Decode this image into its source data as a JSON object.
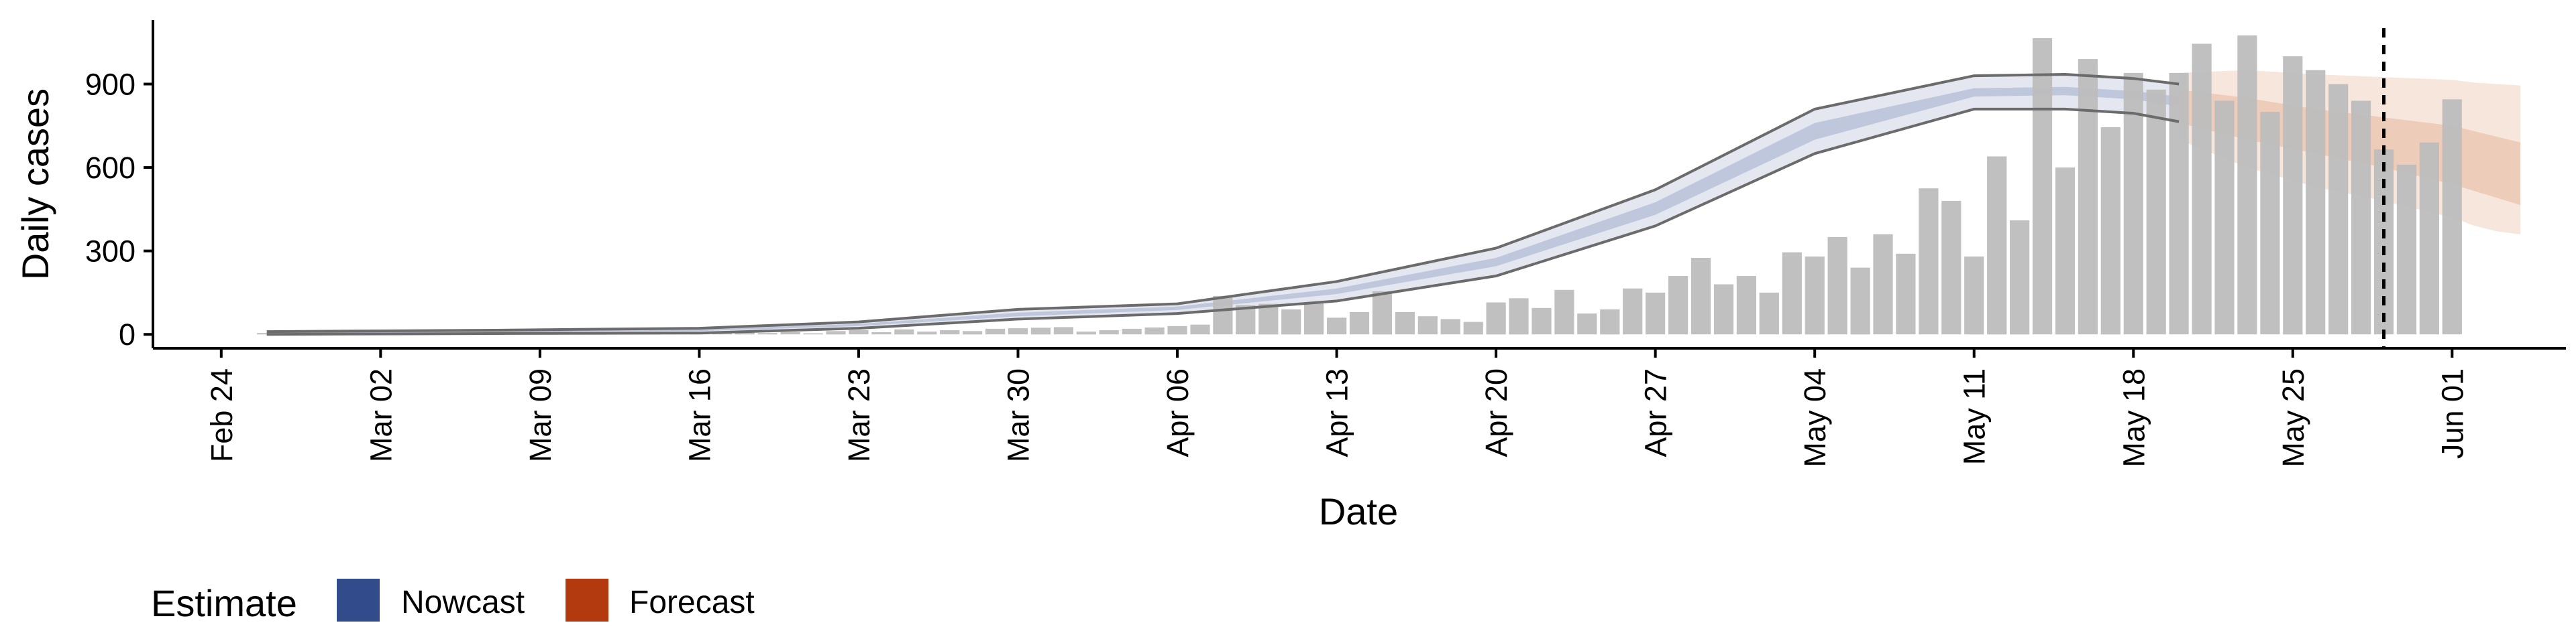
{
  "chart_data": {
    "type": "bar",
    "xlabel": "Date",
    "ylabel": "Daily cases",
    "x_ticks": [
      "Feb 24",
      "Mar 02",
      "Mar 09",
      "Mar 16",
      "Mar 23",
      "Mar 30",
      "Apr 06",
      "Apr 13",
      "Apr 20",
      "Apr 27",
      "May 04",
      "May 11",
      "May 18",
      "May 25",
      "Jun 01"
    ],
    "x_tick_days": [
      0,
      7,
      14,
      21,
      28,
      35,
      42,
      49,
      56,
      63,
      70,
      77,
      84,
      91,
      98
    ],
    "x_range_days": [
      -3,
      103
    ],
    "y_ticks": [
      0,
      300,
      600,
      900
    ],
    "ylim": [
      -50,
      1130
    ],
    "grid": false,
    "cutoff_day": 95,
    "first_case_day": 2,
    "daily_cases": [
      5,
      8,
      10,
      9,
      4,
      5,
      6,
      3,
      7,
      5,
      8,
      6,
      9,
      10,
      4,
      6,
      9,
      5,
      7,
      8,
      6,
      10,
      5,
      8,
      4,
      12,
      15,
      8,
      18,
      10,
      15,
      12,
      20,
      22,
      24,
      26,
      10,
      15,
      20,
      25,
      30,
      35,
      138,
      105,
      110,
      90,
      115,
      60,
      80,
      155,
      80,
      65,
      55,
      45,
      115,
      130,
      95,
      160,
      75,
      90,
      165,
      150,
      210,
      275,
      180,
      210,
      150,
      295,
      280,
      350,
      240,
      360,
      290,
      525,
      480,
      280,
      640,
      410,
      1065,
      600,
      990,
      745,
      940,
      880,
      940,
      1045,
      840,
      1075,
      800,
      1000,
      950,
      900,
      840,
      665,
      610,
      690,
      845
    ],
    "nowcast": {
      "days": [
        2,
        12,
        21,
        28,
        35,
        42,
        49,
        56,
        63,
        70,
        77,
        81,
        84,
        86
      ],
      "outer_lower": [
        0,
        3,
        5,
        22,
        55,
        75,
        120,
        210,
        390,
        650,
        810,
        810,
        795,
        765
      ],
      "outer_upper": [
        10,
        15,
        22,
        45,
        90,
        110,
        190,
        310,
        520,
        810,
        930,
        935,
        920,
        900
      ],
      "inner_lower": [
        3,
        8,
        12,
        30,
        65,
        88,
        145,
        245,
        430,
        700,
        855,
        860,
        845,
        820
      ],
      "inner_upper": [
        6,
        12,
        18,
        38,
        78,
        100,
        165,
        275,
        475,
        760,
        885,
        890,
        875,
        855
      ]
    },
    "forecast": {
      "days": [
        86,
        89,
        92,
        95,
        98,
        99,
        100,
        101
      ],
      "outer_lower": [
        700,
        600,
        530,
        480,
        420,
        390,
        370,
        360
      ],
      "outer_upper": [
        940,
        950,
        935,
        925,
        915,
        905,
        900,
        895
      ],
      "inner_lower": [
        760,
        700,
        650,
        600,
        540,
        515,
        490,
        465
      ],
      "inner_upper": [
        880,
        850,
        810,
        780,
        750,
        730,
        710,
        690
      ]
    },
    "legend": {
      "title": "Estimate",
      "items": [
        "Nowcast",
        "Forecast"
      ],
      "placement": "bottom-left"
    },
    "colors": {
      "bar": "#bdbdbd",
      "nowcast_outer": "#e4e7f0",
      "nowcast_inner": "#bfc7dd",
      "nowcast_line": "#6b6b6b",
      "forecast_outer": "#f6e6dc",
      "forecast_inner": "#edccb9",
      "nowcast_key": "#324b8a",
      "forecast_key": "#b23a0e",
      "axis": "#000000"
    }
  }
}
